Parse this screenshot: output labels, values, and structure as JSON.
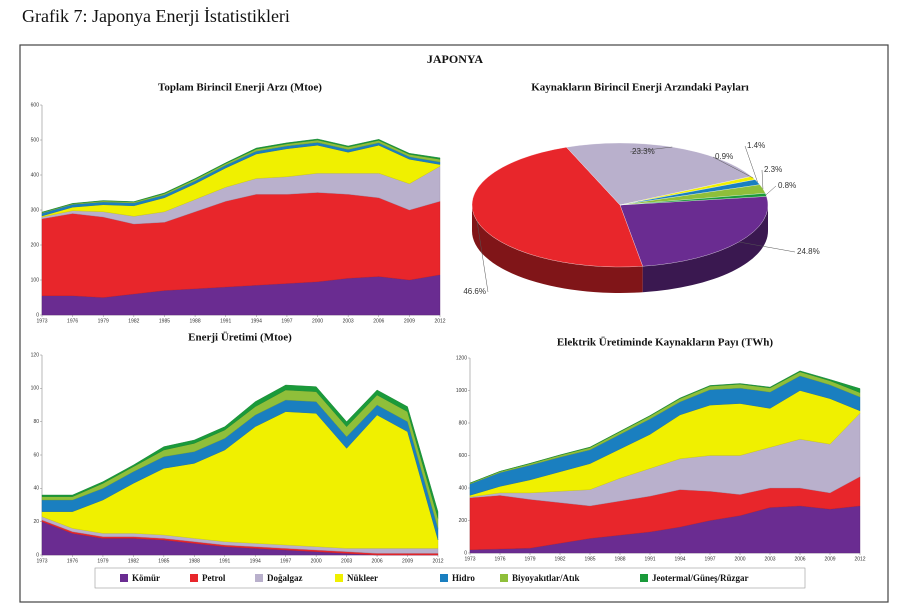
{
  "caption": "Grafik 7: Japonya Enerji İstatistikleri",
  "title": "JAPONYA",
  "legend": [
    {
      "name": "Kömür",
      "color": "#6a2c91"
    },
    {
      "name": "Petrol",
      "color": "#e8262b"
    },
    {
      "name": "Doğalgaz",
      "color": "#b9b0cc"
    },
    {
      "name": "Nükleer",
      "color": "#f0f000"
    },
    {
      "name": "Hidro",
      "color": "#1a7fc0"
    },
    {
      "name": "Biyoyakıtlar/Atık",
      "color": "#8fbf3a"
    },
    {
      "name": "Jeotermal/Güneş/Rüzgar",
      "color": "#1a9a3a"
    }
  ],
  "chart_data": [
    {
      "type": "area",
      "title": "Toplam Birincil Enerji Arzı (Mtoe)",
      "x": [
        1973,
        1976,
        1979,
        1982,
        1985,
        1988,
        1991,
        1994,
        1997,
        2000,
        2003,
        2006,
        2009,
        2012
      ],
      "xlim": [
        1973,
        2012
      ],
      "xticks": [
        1973,
        1976,
        1979,
        1982,
        1985,
        1988,
        1991,
        1994,
        1997,
        2000,
        2003,
        2006,
        2009,
        2012
      ],
      "ylim": [
        0,
        600
      ],
      "yticks": [
        0,
        100,
        200,
        300,
        400,
        500,
        600
      ],
      "series": [
        {
          "values": [
            55,
            55,
            50,
            60,
            70,
            75,
            80,
            85,
            90,
            95,
            105,
            110,
            100,
            115
          ]
        },
        {
          "values": [
            220,
            235,
            230,
            200,
            195,
            220,
            245,
            260,
            255,
            255,
            240,
            225,
            200,
            210
          ]
        },
        {
          "values": [
            5,
            8,
            15,
            22,
            30,
            35,
            40,
            45,
            50,
            55,
            60,
            70,
            75,
            100
          ]
        },
        {
          "values": [
            3,
            10,
            20,
            30,
            40,
            45,
            55,
            70,
            80,
            80,
            60,
            80,
            70,
            5
          ]
        },
        {
          "values": [
            8,
            8,
            8,
            8,
            8,
            8,
            8,
            8,
            8,
            8,
            8,
            7,
            7,
            7
          ]
        },
        {
          "values": [
            2,
            2,
            3,
            3,
            4,
            5,
            5,
            6,
            6,
            7,
            7,
            7,
            7,
            8
          ]
        },
        {
          "values": [
            1,
            1,
            1,
            1,
            2,
            2,
            2,
            3,
            3,
            3,
            3,
            3,
            3,
            4
          ]
        }
      ]
    },
    {
      "type": "pie",
      "title": "Kaynakların Birincil Enerji Arzındaki Payları",
      "values": [
        24.8,
        46.6,
        23.3,
        0.9,
        1.4,
        2.3,
        0.8
      ],
      "value_labels": [
        "24.8%",
        "46.6%",
        "23.3%",
        "0.9%",
        "1.4%",
        "2.3%",
        "0.8%"
      ]
    },
    {
      "type": "area",
      "title": "Enerji Üretimi (Mtoe)",
      "x": [
        1973,
        1976,
        1979,
        1982,
        1985,
        1988,
        1991,
        1994,
        1997,
        2000,
        2003,
        2006,
        2009,
        2012
      ],
      "xlim": [
        1973,
        2012
      ],
      "xticks": [
        1973,
        1976,
        1979,
        1982,
        1985,
        1988,
        1991,
        1994,
        1997,
        2000,
        2003,
        2006,
        2009,
        2012
      ],
      "ylim": [
        0,
        120
      ],
      "yticks": [
        0,
        20,
        40,
        60,
        80,
        100,
        120
      ],
      "series": [
        {
          "values": [
            20,
            13,
            10,
            10,
            9,
            7,
            5,
            4,
            3,
            2,
            1,
            0,
            0,
            0
          ]
        },
        {
          "values": [
            1,
            1,
            1,
            1,
            1,
            1,
            1,
            1,
            1,
            1,
            1,
            1,
            1,
            1
          ]
        },
        {
          "values": [
            2,
            2,
            2,
            2,
            2,
            2,
            2,
            2,
            2,
            2,
            2,
            3,
            3,
            3
          ]
        },
        {
          "values": [
            3,
            10,
            20,
            30,
            40,
            45,
            55,
            70,
            80,
            80,
            60,
            80,
            70,
            5
          ]
        },
        {
          "values": [
            7,
            7,
            7,
            7,
            7,
            7,
            7,
            7,
            7,
            7,
            7,
            6,
            6,
            7
          ]
        },
        {
          "values": [
            2,
            2,
            3,
            3,
            4,
            5,
            5,
            5,
            6,
            6,
            6,
            6,
            6,
            6
          ]
        },
        {
          "values": [
            1,
            1,
            1,
            1,
            2,
            2,
            2,
            3,
            3,
            3,
            3,
            3,
            3,
            4
          ]
        }
      ]
    },
    {
      "type": "area",
      "title": "Elektrik Üretiminde Kaynakların Payı (TWh)",
      "x": [
        1973,
        1976,
        1979,
        1982,
        1985,
        1988,
        1991,
        1994,
        1997,
        2000,
        2003,
        2006,
        2009,
        2012
      ],
      "xlim": [
        1973,
        2012
      ],
      "xticks": [
        1973,
        1976,
        1979,
        1982,
        1985,
        1988,
        1991,
        1994,
        1997,
        2000,
        2003,
        2006,
        2009,
        2012
      ],
      "ylim": [
        0,
        1200
      ],
      "yticks": [
        0,
        200,
        400,
        600,
        800,
        1000,
        1200
      ],
      "series": [
        {
          "values": [
            20,
            25,
            30,
            60,
            90,
            110,
            130,
            160,
            200,
            230,
            280,
            290,
            270,
            290
          ]
        },
        {
          "values": [
            320,
            330,
            300,
            250,
            200,
            210,
            220,
            230,
            180,
            130,
            120,
            110,
            100,
            180
          ]
        },
        {
          "values": [
            5,
            15,
            40,
            70,
            100,
            140,
            170,
            190,
            220,
            240,
            250,
            300,
            300,
            390
          ]
        },
        {
          "values": [
            10,
            40,
            80,
            120,
            160,
            180,
            210,
            270,
            310,
            320,
            240,
            300,
            280,
            15
          ]
        },
        {
          "values": [
            70,
            85,
            90,
            90,
            85,
            90,
            95,
            80,
            95,
            95,
            100,
            90,
            85,
            85
          ]
        },
        {
          "values": [
            5,
            7,
            10,
            12,
            14,
            16,
            18,
            20,
            22,
            24,
            26,
            25,
            25,
            27
          ]
        },
        {
          "values": [
            1,
            1,
            2,
            2,
            3,
            3,
            3,
            4,
            4,
            4,
            5,
            6,
            8,
            25
          ]
        }
      ]
    }
  ]
}
